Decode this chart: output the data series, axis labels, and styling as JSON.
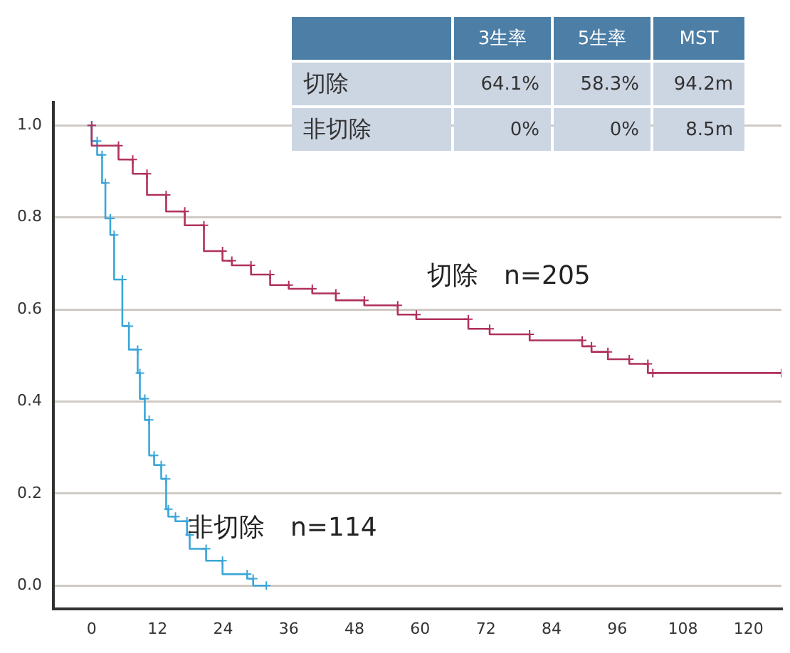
{
  "chart_data": {
    "type": "step",
    "xlim": [
      -7,
      126
    ],
    "xticks": [
      0,
      12,
      24,
      36,
      48,
      60,
      72,
      84,
      96,
      108,
      120
    ],
    "ylim": [
      -0.05,
      1.05
    ],
    "yticks": [
      {
        "value": 0,
        "label": "0.0"
      },
      0.2,
      0.4,
      0.6,
      0.8,
      {
        "value": 1,
        "label": "1.0"
      }
    ],
    "grid": "y",
    "marker": "cross",
    "legend": false,
    "series": [
      {
        "name": "切除　n=205",
        "color": "#b0325a",
        "x": [
          0,
          4.9,
          7.5,
          10.1,
          13.6,
          17,
          20.5,
          23.9,
          25.6,
          29.1,
          32.6,
          36,
          40.3,
          44.6,
          49.8,
          55.9,
          59.3,
          68.8,
          72.7,
          80,
          89.6,
          91.3,
          94.3,
          98.2,
          101.6,
          102.5,
          126
        ],
        "values": [
          1,
          0.956,
          0.926,
          0.895,
          0.849,
          0.813,
          0.783,
          0.727,
          0.706,
          0.696,
          0.676,
          0.653,
          0.645,
          0.635,
          0.62,
          0.609,
          0.589,
          0.579,
          0.558,
          0.546,
          0.533,
          0.52,
          0.508,
          0.492,
          0.482,
          0.462,
          0.462
        ]
      },
      {
        "name": "非切除　n=114",
        "color": "#3aa6d8",
        "x": [
          0,
          1,
          1.9,
          2.5,
          3.4,
          4.1,
          5.6,
          6.8,
          8.4,
          8.8,
          9.7,
          10.5,
          11.4,
          12.7,
          13.6,
          14,
          15.3,
          17.4,
          17.9,
          20.9,
          23.9,
          28.4,
          29.5,
          31.9
        ],
        "values": [
          1,
          0.966,
          0.936,
          0.875,
          0.798,
          0.762,
          0.665,
          0.564,
          0.513,
          0.462,
          0.406,
          0.36,
          0.283,
          0.262,
          0.232,
          0.166,
          0.15,
          0.14,
          0.11,
          0.08,
          0.054,
          0.025,
          0.015,
          0
        ]
      }
    ],
    "annotations": [
      "3生率",
      "5生率",
      "MST",
      "切除",
      "64.1%",
      "58.3%",
      "94.2m",
      "非切除",
      "0%",
      "0%",
      "8.5m"
    ]
  }
}
